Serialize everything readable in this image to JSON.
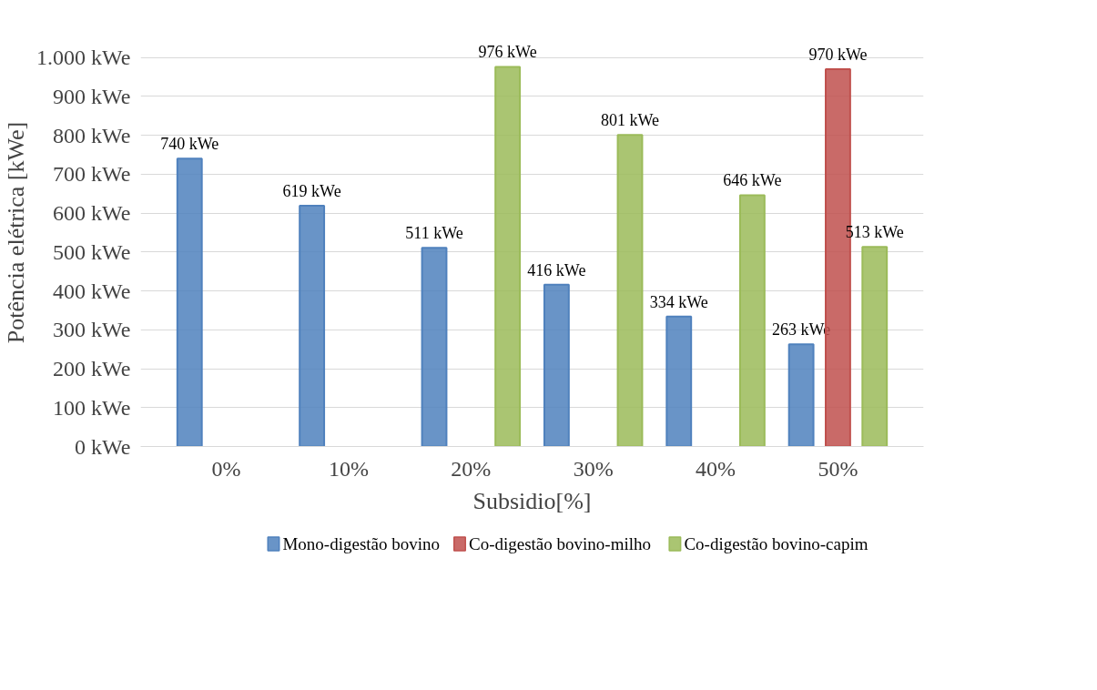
{
  "chart_data": {
    "type": "bar",
    "xlabel": "Subsidio[%]",
    "ylabel": "Potência elétrica [kWe]",
    "categories": [
      "0%",
      "10%",
      "20%",
      "30%",
      "40%",
      "50%"
    ],
    "series": [
      {
        "name": "Mono-digestão bovino",
        "color": "#4f81bd",
        "values": [
          740,
          619,
          511,
          416,
          334,
          263
        ],
        "value_labels": [
          "740 kWe",
          "619 kWe",
          "511 kWe",
          "416 kWe",
          "334 kWe",
          "263 kWe"
        ]
      },
      {
        "name": "Co-digestão bovino-milho",
        "color": "#c0504d",
        "values": [
          null,
          null,
          null,
          null,
          null,
          970
        ],
        "value_labels": [
          null,
          null,
          null,
          null,
          null,
          "970 kWe"
        ]
      },
      {
        "name": "Co-digestão bovino-capim",
        "color": "#9bbb59",
        "values": [
          null,
          null,
          976,
          801,
          646,
          513
        ],
        "value_labels": [
          null,
          null,
          "976 kWe",
          "801 kWe",
          "646 kWe",
          "513 kWe"
        ]
      }
    ],
    "ylim": [
      0,
      1000
    ],
    "yticks": [
      {
        "value": 0,
        "label": "0 kWe"
      },
      {
        "value": 100,
        "label": "100 kWe"
      },
      {
        "value": 200,
        "label": "200 kWe"
      },
      {
        "value": 300,
        "label": "300 kWe"
      },
      {
        "value": 400,
        "label": "400 kWe"
      },
      {
        "value": 500,
        "label": "500 kWe"
      },
      {
        "value": 600,
        "label": "600 kWe"
      },
      {
        "value": 700,
        "label": "700 kWe"
      },
      {
        "value": 800,
        "label": "800 kWe"
      },
      {
        "value": 900,
        "label": "900 kWe"
      },
      {
        "value": 1000,
        "label": "1.000 kWe"
      }
    ],
    "grid": "y",
    "legend": "bottom"
  }
}
